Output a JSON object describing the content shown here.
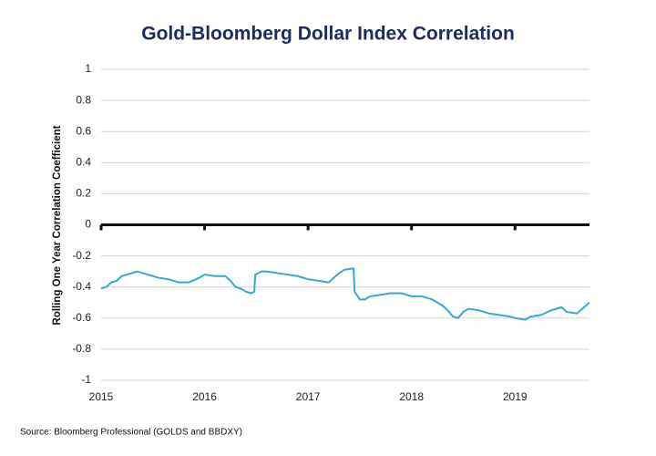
{
  "chart_data": {
    "type": "line",
    "title": "Gold-Bloomberg Dollar Index Correlation",
    "y_label": "Rolling One Year Correlation Coefficient",
    "source": "Source: Bloomberg Professional (GOLDS and BBDXY)",
    "xlim": [
      2015,
      2019.72
    ],
    "xticks": [
      2015,
      2016,
      2017,
      2018,
      2019
    ],
    "ylim": [
      -1,
      1
    ],
    "yticks": [
      1,
      0.8,
      0.6,
      0.4,
      0.2,
      0,
      -0.2,
      -0.4,
      -0.6,
      -0.8,
      -1
    ],
    "grid": true,
    "series": [
      {
        "color": "#3aa7d2",
        "x": [
          2015.0,
          2015.05,
          2015.1,
          2015.15,
          2015.2,
          2015.25,
          2015.3,
          2015.35,
          2015.45,
          2015.55,
          2015.65,
          2015.75,
          2015.85,
          2015.95,
          2016.0,
          2016.1,
          2016.2,
          2016.25,
          2016.3,
          2016.35,
          2016.4,
          2016.45,
          2016.48,
          2016.49,
          2016.55,
          2016.6,
          2016.7,
          2016.8,
          2016.9,
          2017.0,
          2017.1,
          2017.2,
          2017.25,
          2017.3,
          2017.35,
          2017.44,
          2017.45,
          2017.5,
          2017.55,
          2017.6,
          2017.7,
          2017.8,
          2017.9,
          2018.0,
          2018.1,
          2018.2,
          2018.3,
          2018.35,
          2018.4,
          2018.45,
          2018.5,
          2018.55,
          2018.65,
          2018.75,
          2018.85,
          2018.95,
          2019.0,
          2019.1,
          2019.15,
          2019.25,
          2019.35,
          2019.45,
          2019.5,
          2019.6,
          2019.65,
          2019.72
        ],
        "values": [
          -0.41,
          -0.4,
          -0.37,
          -0.36,
          -0.33,
          -0.32,
          -0.31,
          -0.3,
          -0.32,
          -0.34,
          -0.35,
          -0.37,
          -0.37,
          -0.34,
          -0.32,
          -0.33,
          -0.33,
          -0.36,
          -0.4,
          -0.41,
          -0.43,
          -0.44,
          -0.43,
          -0.32,
          -0.3,
          -0.3,
          -0.31,
          -0.32,
          -0.33,
          -0.35,
          -0.36,
          -0.37,
          -0.34,
          -0.31,
          -0.29,
          -0.28,
          -0.43,
          -0.48,
          -0.48,
          -0.46,
          -0.45,
          -0.44,
          -0.44,
          -0.46,
          -0.46,
          -0.48,
          -0.52,
          -0.55,
          -0.59,
          -0.6,
          -0.56,
          -0.54,
          -0.55,
          -0.57,
          -0.58,
          -0.59,
          -0.6,
          -0.61,
          -0.59,
          -0.58,
          -0.55,
          -0.53,
          -0.56,
          -0.57,
          -0.54,
          -0.5
        ]
      }
    ]
  }
}
